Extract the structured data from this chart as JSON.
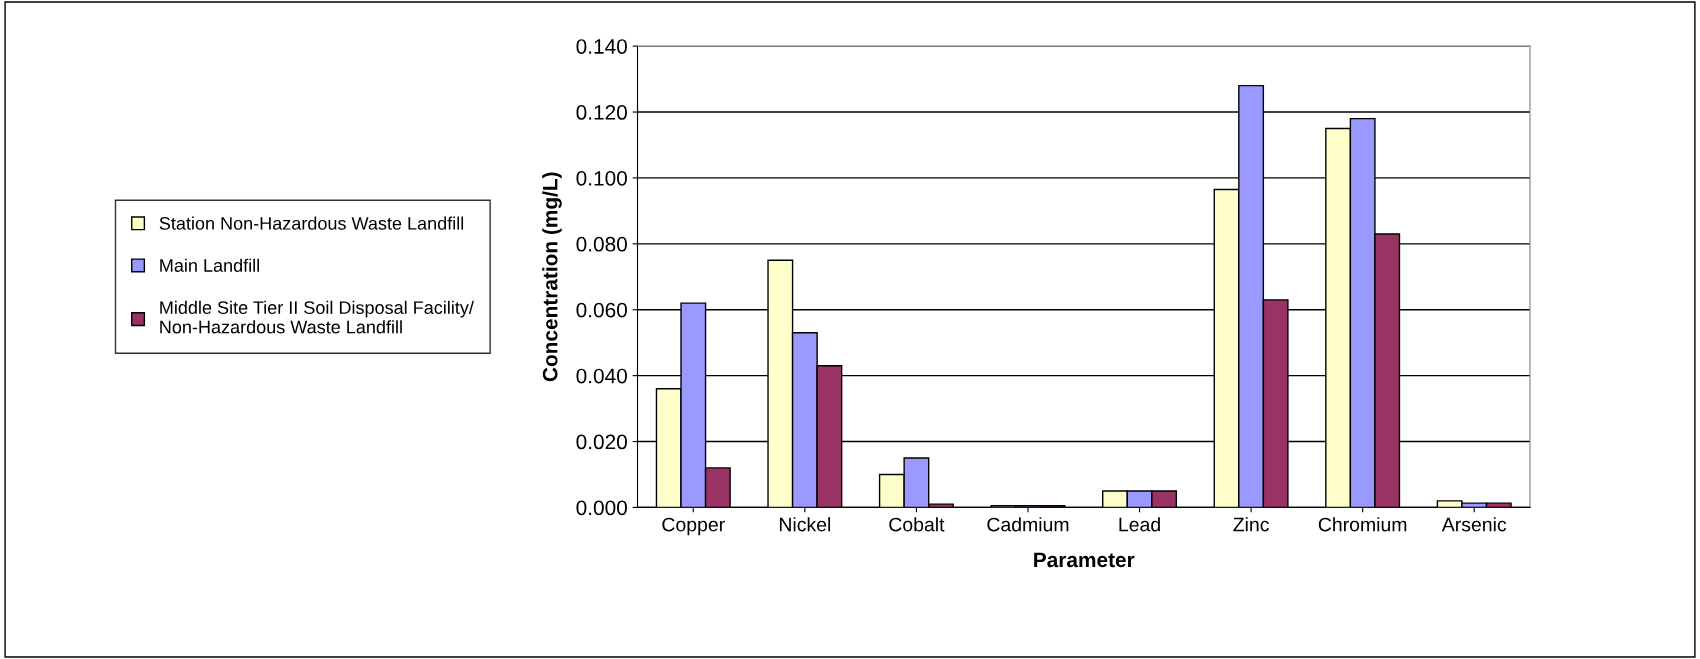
{
  "chart_data": {
    "type": "bar",
    "xlabel": "Parameter",
    "ylabel": "Concentration (mg/L)",
    "categories": [
      "Copper",
      "Nickel",
      "Cobalt",
      "Cadmium",
      "Lead",
      "Zinc",
      "Chromium",
      "Arsenic"
    ],
    "series": [
      {
        "name": "Station Non-Hazardous Waste Landfill",
        "color": "#ffffcc",
        "values": [
          0.036,
          0.075,
          0.01,
          0.0005,
          0.005,
          0.0965,
          0.115,
          0.002
        ]
      },
      {
        "name": "Main Landfill",
        "color": "#9999ff",
        "values": [
          0.062,
          0.053,
          0.015,
          0.0005,
          0.005,
          0.128,
          0.118,
          0.0013
        ]
      },
      {
        "name": "Middle Site Tier II Soil Disposal Facility/\nNon-Hazardous Waste Landfill",
        "color": "#993366",
        "values": [
          0.012,
          0.043,
          0.001,
          0.0005,
          0.005,
          0.063,
          0.083,
          0.0013
        ]
      }
    ],
    "ylim": [
      0,
      0.14
    ],
    "yticks": [
      {
        "value": 0,
        "label": "0.000"
      },
      {
        "value": 0.02,
        "label": "0.020"
      },
      {
        "value": 0.04,
        "label": "0.040"
      },
      {
        "value": 0.06,
        "label": "0.060"
      },
      {
        "value": 0.08,
        "label": "0.080"
      },
      {
        "value": 0.1,
        "label": "0.100"
      },
      {
        "value": 0.12,
        "label": "0.120"
      },
      {
        "value": 0.14,
        "label": "0.140"
      }
    ],
    "grid": "y",
    "legend": "left"
  }
}
